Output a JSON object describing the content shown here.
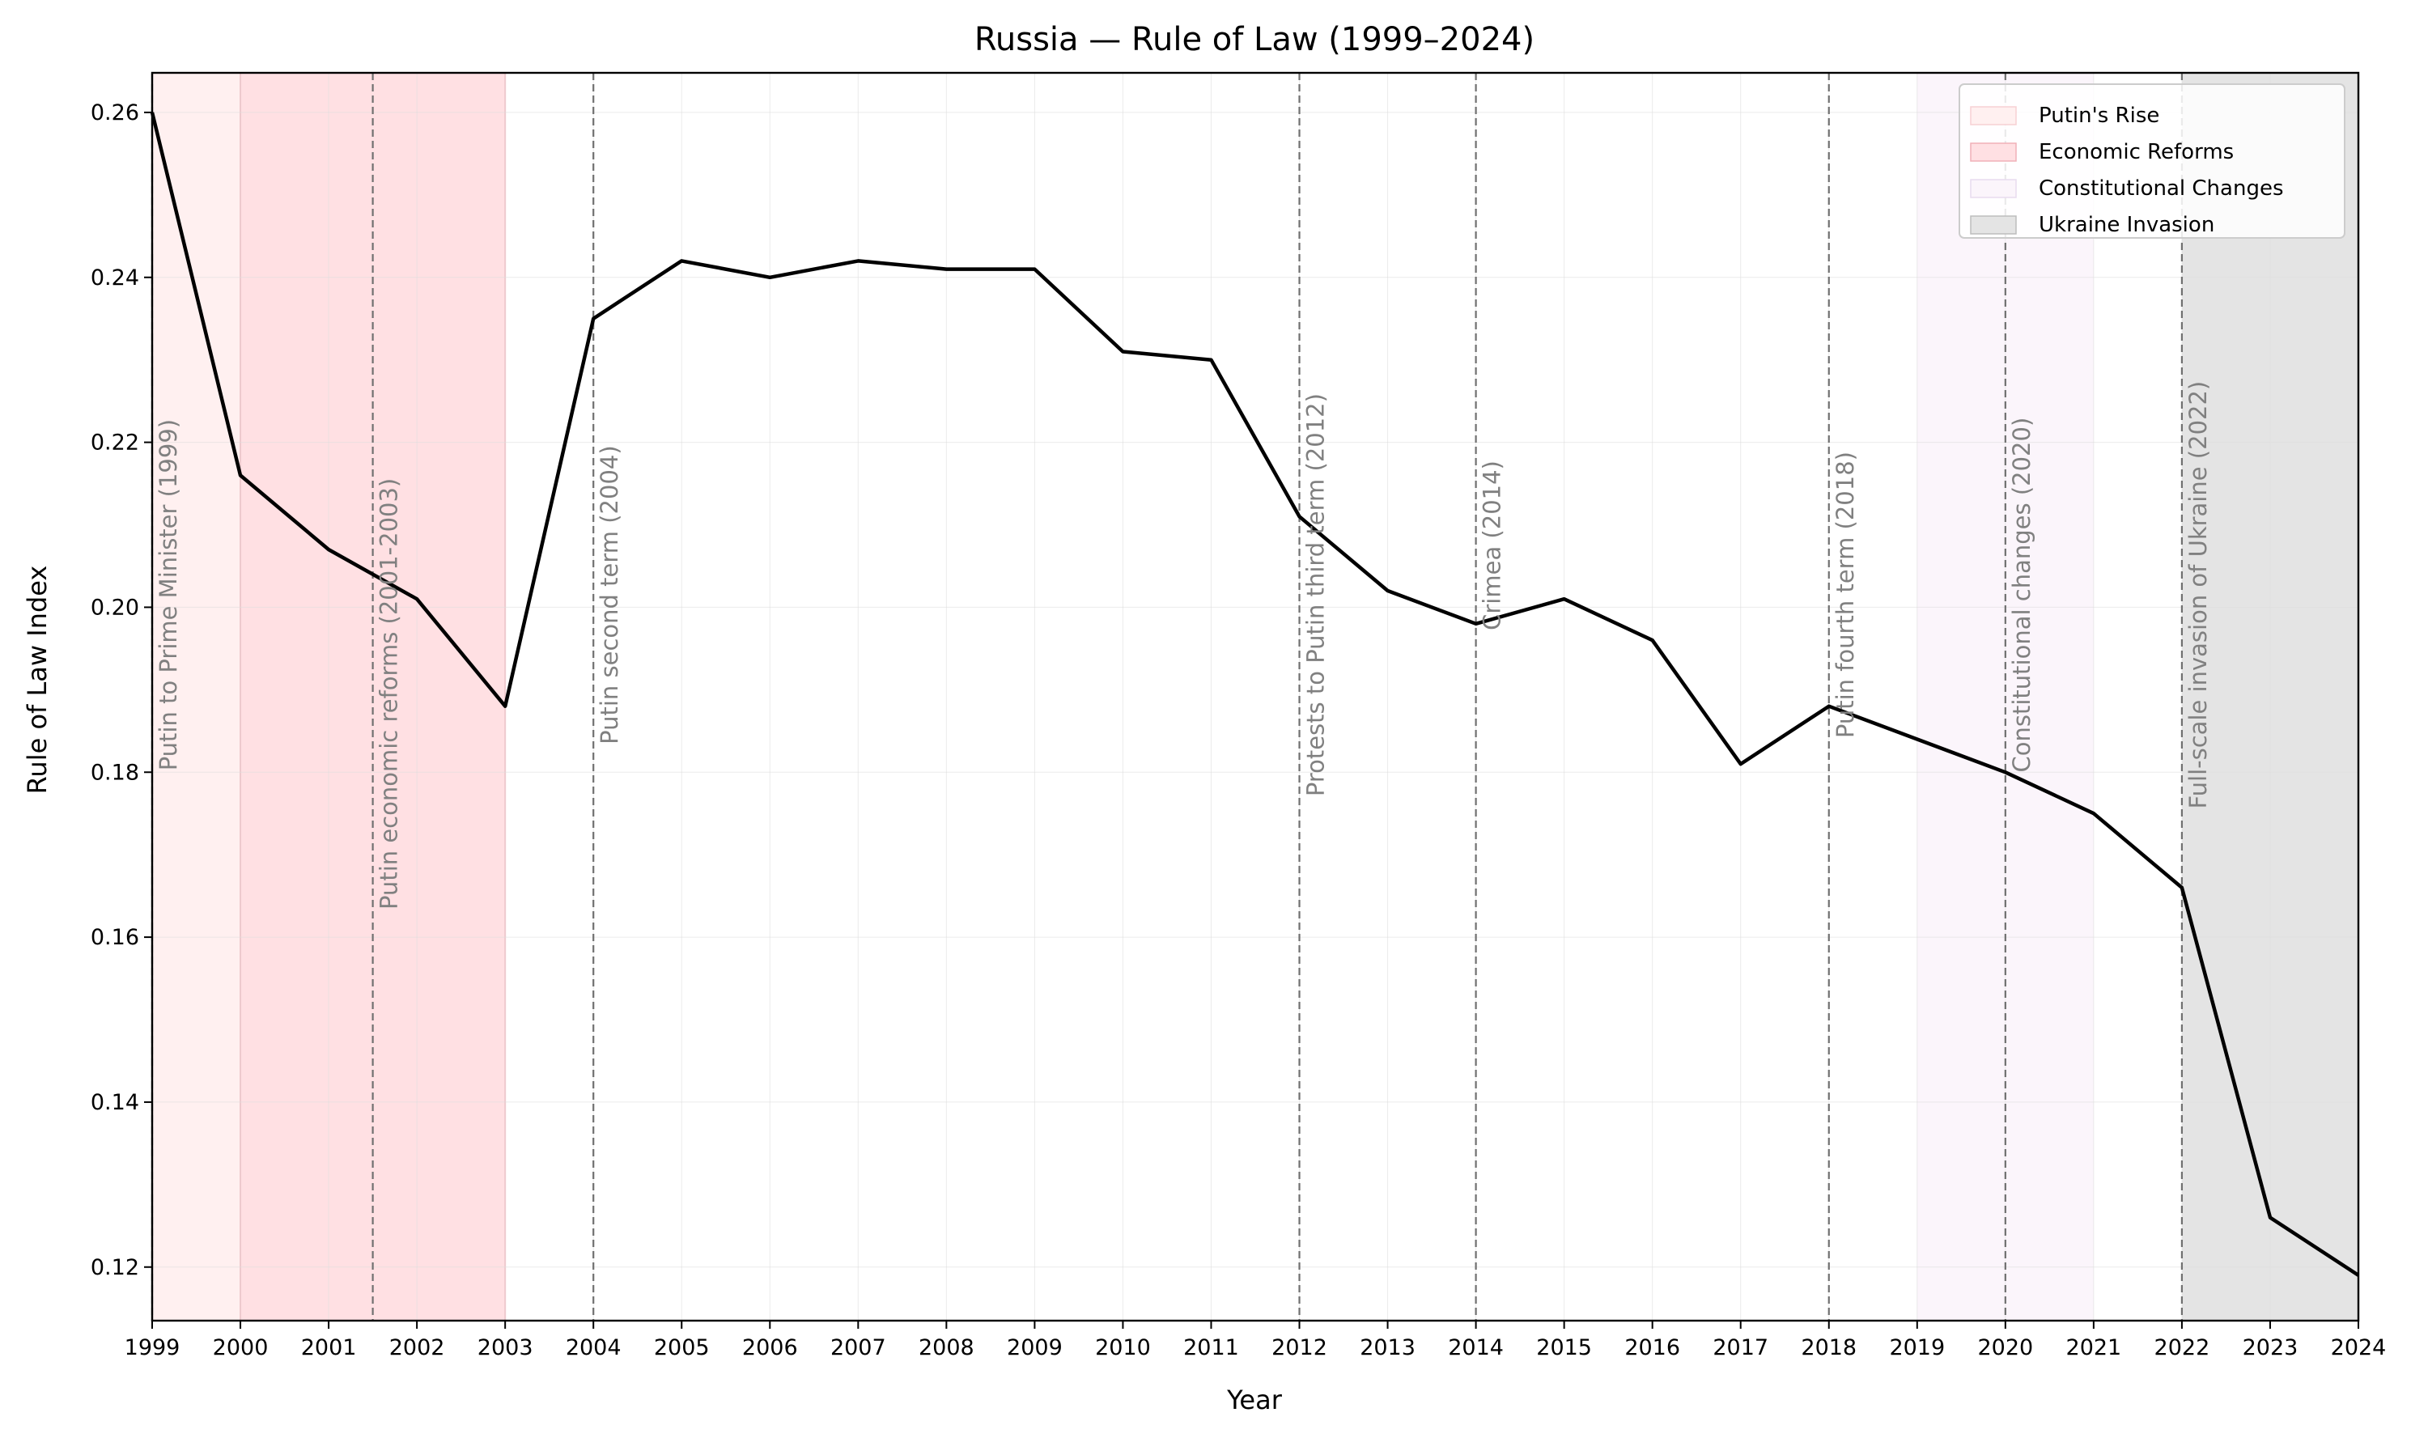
{
  "chart_data": {
    "type": "line",
    "title": "Russia — Rule of Law (1999–2024)",
    "xlabel": "Year",
    "ylabel": "Rule of Law Index",
    "xlim": [
      1999,
      2024
    ],
    "ylim": [
      0.1135,
      0.2648
    ],
    "x_ticks": [
      1999,
      2000,
      2001,
      2002,
      2003,
      2004,
      2005,
      2006,
      2007,
      2008,
      2009,
      2010,
      2011,
      2012,
      2013,
      2014,
      2015,
      2016,
      2017,
      2018,
      2019,
      2020,
      2021,
      2022,
      2023,
      2024
    ],
    "y_ticks": [
      0.12,
      0.14,
      0.16,
      0.18,
      0.2,
      0.22,
      0.24,
      0.26
    ],
    "y_tick_labels": [
      "0.12",
      "0.14",
      "0.16",
      "0.18",
      "0.20",
      "0.22",
      "0.24",
      "0.26"
    ],
    "grid": true,
    "legend_position": "top-right",
    "series": [
      {
        "color": "#000000",
        "x": [
          1999,
          2000,
          2001,
          2002,
          2003,
          2004,
          2005,
          2006,
          2007,
          2008,
          2009,
          2010,
          2011,
          2012,
          2013,
          2014,
          2015,
          2016,
          2017,
          2018,
          2019,
          2020,
          2021,
          2022,
          2023,
          2024
        ],
        "y": [
          0.26,
          0.216,
          0.207,
          0.201,
          0.188,
          0.235,
          0.242,
          0.24,
          0.242,
          0.241,
          0.241,
          0.231,
          0.23,
          0.211,
          0.202,
          0.198,
          0.201,
          0.196,
          0.181,
          0.188,
          0.184,
          0.18,
          0.175,
          0.166,
          0.126,
          0.119
        ]
      }
    ],
    "periods": [
      {
        "label": "Putin's Rise",
        "start": 1999,
        "end": 2000,
        "color": "#fff0f0"
      },
      {
        "label": "Economic Reforms",
        "start": 2000,
        "end": 2003,
        "color": "#ffe0e3"
      },
      {
        "label": "Constitutional Changes",
        "start": 2019,
        "end": 2021,
        "color": "#fbf5fb"
      },
      {
        "label": "Ukraine Invasion",
        "start": 2022,
        "end": 2024,
        "color": "#e4e4e4"
      }
    ],
    "events": [
      {
        "x": 1999,
        "label": "Putin to Prime Minister (1999)",
        "text_y": 0.2015
      },
      {
        "x": 2001.5,
        "label": "Putin economic reforms (2001-2003)",
        "text_y": 0.1895
      },
      {
        "x": 2004,
        "label": "Putin second term (2004)",
        "text_y": 0.2015
      },
      {
        "x": 2012,
        "label": "Protests to Putin third term (2012)",
        "text_y": 0.2015
      },
      {
        "x": 2014,
        "label": "Crimea (2014)",
        "text_y": 0.2075
      },
      {
        "x": 2018,
        "label": "Putin fourth term (2018)",
        "text_y": 0.2015
      },
      {
        "x": 2020,
        "label": "Constitutional changes (2020)",
        "text_y": 0.2015
      },
      {
        "x": 2022,
        "label": "Full-scale invasion of Ukraine (2022)",
        "text_y": 0.2015
      }
    ]
  }
}
